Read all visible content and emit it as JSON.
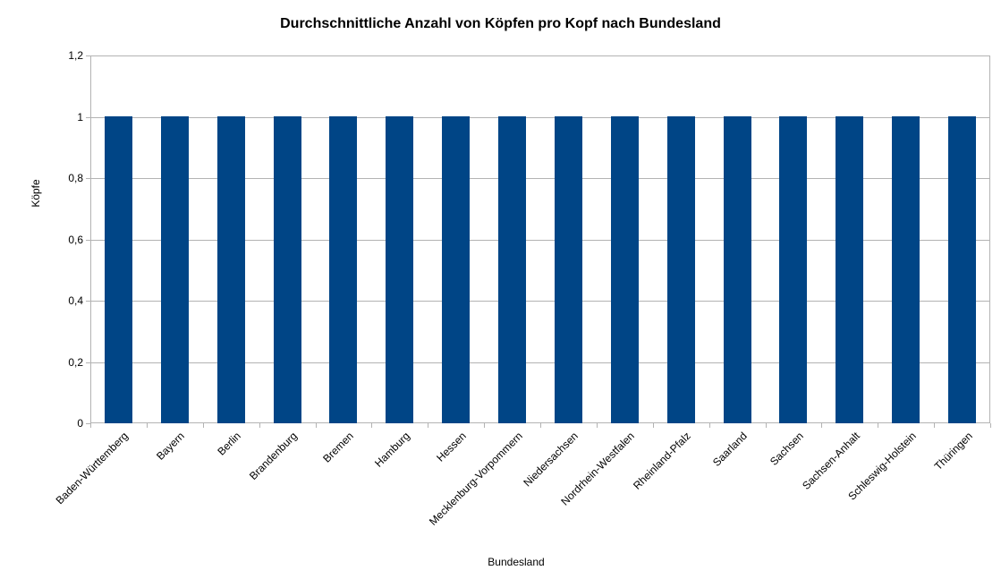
{
  "chart_data": {
    "type": "bar",
    "title": "Durchschnittliche Anzahl von Köpfen pro Kopf nach Bundesland",
    "xlabel": "Bundesland",
    "ylabel": "Köpfe",
    "categories": [
      "Baden-Württemberg",
      "Bayern",
      "Berlin",
      "Brandenburg",
      "Bremen",
      "Hamburg",
      "Hessen",
      "Mecklenburg-Vorpommern",
      "Niedersachsen",
      "Nordrhein-Westfalen",
      "Rheinland-Pfalz",
      "Saarland",
      "Sachsen",
      "Sachsen-Anhalt",
      "Schleswig-Holstein",
      "Thüringen"
    ],
    "values": [
      1,
      1,
      1,
      1,
      1,
      1,
      1,
      1,
      1,
      1,
      1,
      1,
      1,
      1,
      1,
      1
    ],
    "ylim": [
      0,
      1.2
    ],
    "y_ticks": [
      {
        "value": 0,
        "label": "0"
      },
      {
        "value": 0.2,
        "label": "0,2"
      },
      {
        "value": 0.4,
        "label": "0,4"
      },
      {
        "value": 0.6,
        "label": "0,6"
      },
      {
        "value": 0.8,
        "label": "0,8"
      },
      {
        "value": 1,
        "label": "1"
      },
      {
        "value": 1.2,
        "label": "1,2"
      }
    ],
    "grid": true,
    "legend": "none",
    "colors": {
      "bar": "#004586",
      "grid": "#b3b3b3",
      "text": "#000000",
      "background": "#ffffff"
    }
  }
}
